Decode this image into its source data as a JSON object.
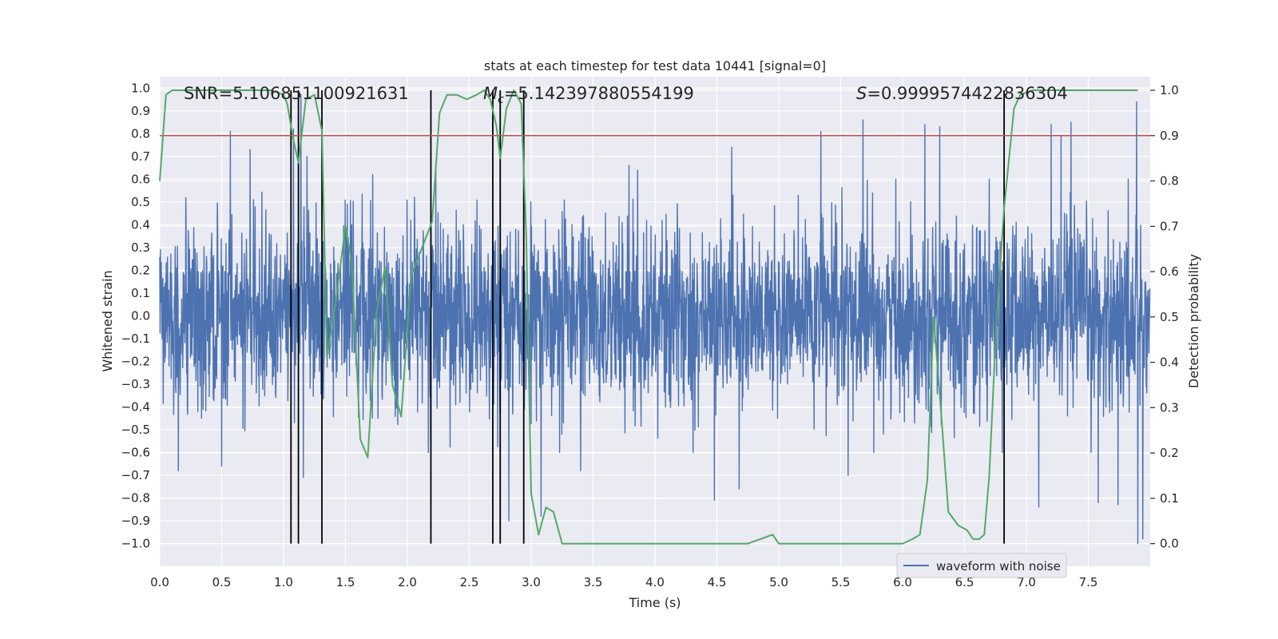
{
  "chart_data": {
    "type": "line",
    "title": "stats at each timestep for test data 10441 [signal=0]",
    "xlabel": "Time (s)",
    "ylabel": "Whitened strain",
    "y2label": "Detection probability",
    "xlim": [
      0.0,
      8.0
    ],
    "ylim": [
      -1.1,
      1.05
    ],
    "y2lim": [
      -0.05,
      1.03
    ],
    "x_ticks": [
      "0.0",
      "0.5",
      "1.0",
      "1.5",
      "2.0",
      "2.5",
      "3.0",
      "3.5",
      "4.0",
      "4.5",
      "5.0",
      "5.5",
      "6.0",
      "6.5",
      "7.0",
      "7.5"
    ],
    "y_ticks": [
      "1.0",
      "0.9",
      "0.8",
      "0.7",
      "0.6",
      "0.5",
      "0.4",
      "0.3",
      "0.2",
      "0.1",
      "0.0",
      "−0.1",
      "−0.2",
      "−0.3",
      "−0.4",
      "−0.5",
      "−0.6",
      "−0.7",
      "−0.8",
      "−0.9",
      "−1.0"
    ],
    "y2_ticks": [
      "1.0",
      "0.9",
      "0.8",
      "0.7",
      "0.6",
      "0.5",
      "0.4",
      "0.3",
      "0.2",
      "0.1",
      "0.0"
    ],
    "grid": true,
    "legend": {
      "position": "lower-right",
      "entries": [
        "waveform with noise"
      ]
    },
    "annotations": {
      "snr": "SNR=5.106851100921631",
      "mc_symbol": "M",
      "mc_sub": "c",
      "mc_value": "=5.142397880554199",
      "s_symbol": "S",
      "s_value": "=0.9999574422836304"
    },
    "threshold": {
      "axis": "y2",
      "value": 0.9,
      "color": "#c44e52"
    },
    "event_lines": [
      1.06,
      1.12,
      1.31,
      2.19,
      2.69,
      2.75,
      2.94,
      6.82
    ],
    "waveform": {
      "name": "waveform with noise",
      "color": "#4c72b0",
      "duration": 8.0,
      "samples": 3200,
      "envelope": [
        -0.6,
        0.6
      ],
      "spikes": [
        {
          "x": 0.57,
          "y": 0.81
        },
        {
          "x": 1.08,
          "y": 0.82
        },
        {
          "x": 1.14,
          "y": 0.97
        },
        {
          "x": 1.19,
          "y": 0.7
        },
        {
          "x": 1.72,
          "y": 0.62
        },
        {
          "x": 2.23,
          "y": 0.66
        },
        {
          "x": 3.79,
          "y": 0.66
        },
        {
          "x": 4.62,
          "y": 0.74
        },
        {
          "x": 5.34,
          "y": 0.81
        },
        {
          "x": 5.56,
          "y": 0.89
        },
        {
          "x": 5.68,
          "y": 0.86
        },
        {
          "x": 6.18,
          "y": 0.84
        },
        {
          "x": 6.3,
          "y": 0.83
        },
        {
          "x": 7.2,
          "y": 0.84
        },
        {
          "x": 7.36,
          "y": 0.85
        },
        {
          "x": 7.89,
          "y": 0.94
        },
        {
          "x": 7.58,
          "y": 0.84
        },
        {
          "x": 7.28,
          "y": 0.79
        },
        {
          "x": 0.73,
          "y": 0.73
        },
        {
          "x": 3.86,
          "y": 0.64
        },
        {
          "x": 4.48,
          "y": -0.81
        },
        {
          "x": 4.68,
          "y": -0.76
        },
        {
          "x": 2.82,
          "y": -0.9
        },
        {
          "x": 3.08,
          "y": -0.88
        },
        {
          "x": 7.74,
          "y": -0.83
        },
        {
          "x": 7.9,
          "y": -1.0
        },
        {
          "x": 7.94,
          "y": -0.98
        },
        {
          "x": 7.58,
          "y": -0.82
        },
        {
          "x": 7.1,
          "y": -0.84
        },
        {
          "x": 1.16,
          "y": -0.71
        },
        {
          "x": 3.4,
          "y": -0.68
        },
        {
          "x": 0.15,
          "y": -0.68
        },
        {
          "x": 0.5,
          "y": -0.66
        },
        {
          "x": 5.56,
          "y": -0.7
        }
      ]
    },
    "probability": {
      "color": "#55a868",
      "x": [
        0.0,
        0.05,
        0.1,
        0.15,
        0.2,
        0.3,
        0.4,
        0.5,
        0.6,
        0.7,
        0.8,
        0.9,
        1.0,
        1.03,
        1.08,
        1.12,
        1.18,
        1.25,
        1.31,
        1.35,
        1.42,
        1.5,
        1.55,
        1.62,
        1.68,
        1.75,
        1.82,
        1.88,
        1.95,
        2.03,
        2.1,
        2.2,
        2.26,
        2.32,
        2.4,
        2.48,
        2.56,
        2.62,
        2.67,
        2.72,
        2.75,
        2.8,
        2.86,
        2.92,
        2.96,
        3.0,
        3.06,
        3.12,
        3.18,
        3.25,
        3.3,
        3.4,
        3.5,
        3.6,
        3.7,
        3.8,
        3.9,
        4.0,
        4.2,
        4.4,
        4.6,
        4.75,
        4.85,
        4.95,
        5.0,
        5.2,
        5.4,
        5.6,
        5.8,
        6.0,
        6.08,
        6.14,
        6.2,
        6.25,
        6.3,
        6.37,
        6.45,
        6.52,
        6.57,
        6.62,
        6.66,
        6.7,
        6.76,
        6.82,
        6.9,
        6.95,
        7.05,
        7.15,
        7.3,
        7.5,
        7.7,
        7.9
      ],
      "y": [
        0.8,
        0.99,
        1.0,
        1.0,
        1.0,
        1.0,
        1.0,
        1.0,
        1.0,
        1.0,
        1.0,
        1.0,
        0.99,
        0.97,
        0.89,
        0.84,
        0.98,
        0.99,
        0.91,
        0.41,
        0.53,
        0.7,
        0.62,
        0.23,
        0.19,
        0.51,
        0.61,
        0.35,
        0.28,
        0.59,
        0.64,
        0.71,
        0.95,
        0.99,
        0.99,
        0.98,
        0.99,
        1.0,
        0.98,
        0.92,
        0.85,
        0.96,
        1.0,
        0.97,
        0.68,
        0.11,
        0.02,
        0.08,
        0.07,
        0.0,
        0.0,
        0.0,
        0.0,
        0.0,
        0.0,
        0.0,
        0.0,
        0.0,
        0.0,
        0.0,
        0.0,
        0.0,
        0.01,
        0.02,
        0.0,
        0.0,
        0.0,
        0.0,
        0.0,
        0.0,
        0.01,
        0.02,
        0.14,
        0.5,
        0.33,
        0.07,
        0.04,
        0.03,
        0.01,
        0.01,
        0.02,
        0.15,
        0.5,
        0.74,
        0.96,
        0.99,
        1.0,
        1.0,
        1.0,
        1.0,
        1.0,
        1.0
      ]
    }
  }
}
